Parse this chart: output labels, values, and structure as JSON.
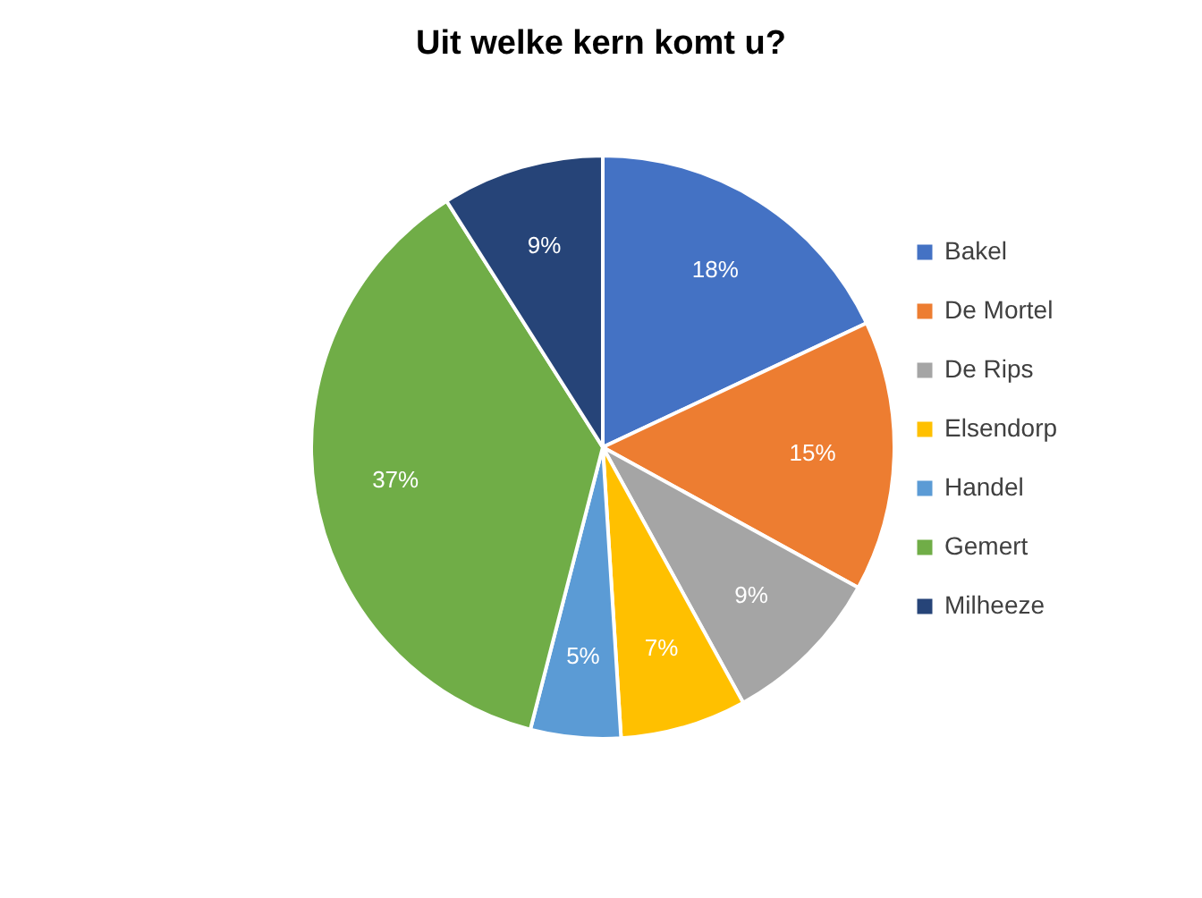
{
  "chart_data": {
    "type": "pie",
    "title": "Uit welke kern komt u?",
    "categories": [
      "Bakel",
      "De Mortel",
      "De Rips",
      "Elsendorp",
      "Handel",
      "Gemert",
      "Milheeze"
    ],
    "values": [
      18,
      15,
      9,
      7,
      5,
      37,
      9
    ],
    "colors": [
      "#4472c4",
      "#ed7d31",
      "#a5a5a5",
      "#ffc000",
      "#5b9bd5",
      "#70ad47",
      "#264478"
    ],
    "value_labels": [
      "18%",
      "15%",
      "9%",
      "7%",
      "5%",
      "37%",
      "9%"
    ],
    "legend": "right"
  }
}
